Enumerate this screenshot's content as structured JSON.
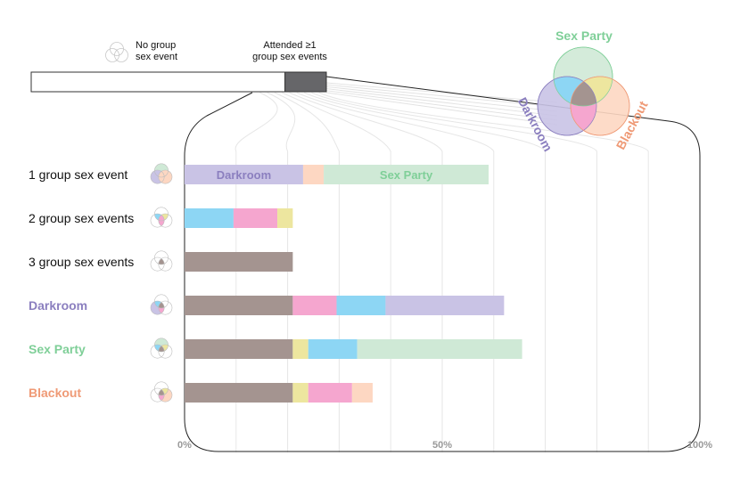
{
  "colors": {
    "darkroom": "#8b7fbf",
    "sex_party": "#7fcf98",
    "blackout": "#ef9a76",
    "darkroom_fill": "#c9c3e5",
    "sex_party_fill": "#cfe9d6",
    "blackout_fill": "#fdd7c2",
    "dr_sp": "#8dd6f4",
    "dr_bo": "#f5a6cf",
    "sp_bo": "#ede69f",
    "all": "#a49490",
    "attended_bar": "#666669"
  },
  "header": {
    "no_event_label_1": "No group",
    "no_event_label_2": "sex event",
    "attended_label_1": "Attended ≥1",
    "attended_label_2": "group sex events"
  },
  "big_venn": {
    "sex_party": "Sex Party",
    "darkroom": "Darkroom",
    "blackout": "Blackout"
  },
  "chart_data": {
    "type": "bar",
    "stacked": true,
    "orientation": "horizontal",
    "xlim": [
      0,
      100
    ],
    "x_ticks": [
      "0%",
      "50%",
      "100%"
    ],
    "rows": [
      {
        "label": "1 group sex event",
        "style": "plain",
        "segments": [
          {
            "key": "darkroom_fill",
            "value": 23,
            "label": "Darkroom"
          },
          {
            "key": "blackout_fill",
            "value": 4,
            "label": ""
          },
          {
            "key": "sex_party_fill",
            "value": 32,
            "label": "Sex Party"
          }
        ]
      },
      {
        "label": "2 group sex events",
        "style": "plain",
        "segments": [
          {
            "key": "dr_sp",
            "value": 9.5,
            "label": ""
          },
          {
            "key": "dr_bo",
            "value": 8.5,
            "label": ""
          },
          {
            "key": "sp_bo",
            "value": 3,
            "label": ""
          }
        ]
      },
      {
        "label": "3 group sex events",
        "style": "plain",
        "segments": [
          {
            "key": "all",
            "value": 21,
            "label": ""
          }
        ]
      },
      {
        "label": "Darkroom",
        "style": "darkroom",
        "segments": [
          {
            "key": "all",
            "value": 21,
            "label": ""
          },
          {
            "key": "dr_bo",
            "value": 8.5,
            "label": ""
          },
          {
            "key": "dr_sp",
            "value": 9.5,
            "label": ""
          },
          {
            "key": "darkroom_fill",
            "value": 23,
            "label": ""
          }
        ]
      },
      {
        "label": "Sex Party",
        "style": "sex_party",
        "segments": [
          {
            "key": "all",
            "value": 21,
            "label": ""
          },
          {
            "key": "sp_bo",
            "value": 3,
            "label": ""
          },
          {
            "key": "dr_sp",
            "value": 9.5,
            "label": ""
          },
          {
            "key": "sex_party_fill",
            "value": 32,
            "label": ""
          }
        ]
      },
      {
        "label": "Blackout",
        "style": "blackout",
        "segments": [
          {
            "key": "all",
            "value": 21,
            "label": ""
          },
          {
            "key": "sp_bo",
            "value": 3,
            "label": ""
          },
          {
            "key": "dr_bo",
            "value": 8.5,
            "label": ""
          },
          {
            "key": "blackout_fill",
            "value": 4,
            "label": ""
          }
        ]
      }
    ],
    "overall": [
      {
        "key": "no_event",
        "value": 86
      },
      {
        "key": "attended",
        "value": 14
      }
    ]
  }
}
